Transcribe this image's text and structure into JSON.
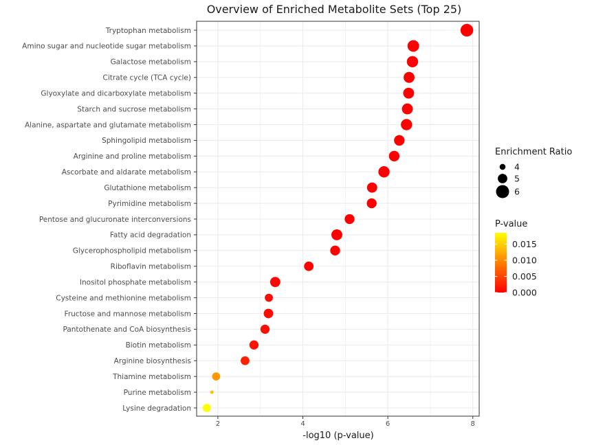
{
  "chart_data": {
    "type": "scatter",
    "title": "Overview of Enriched Metabolite Sets (Top 25)",
    "xlabel": "-log10 (p-value)",
    "ylabel": "",
    "xlim": [
      1.5,
      8.15
    ],
    "xticks": [
      2,
      4,
      6,
      8
    ],
    "xtick_labels": [
      "2",
      "4",
      "6",
      "8"
    ],
    "grid": true,
    "categories": [
      "Tryptophan metabolism",
      "Amino sugar and nucleotide sugar metabolism",
      "Galactose metabolism",
      "Citrate cycle (TCA cycle)",
      "Glyoxylate and dicarboxylate metabolism",
      "Starch and sucrose metabolism",
      "Alanine, aspartate and glutamate metabolism",
      "Sphingolipid metabolism",
      "Arginine and proline metabolism",
      "Ascorbate and aldarate metabolism",
      "Glutathione metabolism",
      "Pyrimidine metabolism",
      "Pentose and glucuronate interconversions",
      "Fatty acid degradation",
      "Glycerophospholipid metabolism",
      "Riboflavin metabolism",
      "Inositol phosphate metabolism",
      "Cysteine and methionine metabolism",
      "Fructose and mannose metabolism",
      "Pantothenate and CoA biosynthesis",
      "Biotin metabolism",
      "Arginine biosynthesis",
      "Thiamine metabolism",
      "Purine metabolism",
      "Lysine degradation"
    ],
    "neg_log10_p": [
      7.86,
      6.6,
      6.58,
      6.5,
      6.49,
      6.46,
      6.44,
      6.27,
      6.15,
      5.91,
      5.63,
      5.62,
      5.1,
      4.8,
      4.76,
      4.14,
      3.35,
      3.2,
      3.19,
      3.11,
      2.85,
      2.64,
      1.96,
      1.86,
      1.74
    ],
    "p_values": [
      1e-08,
      3e-07,
      3e-07,
      3e-07,
      3e-07,
      3e-07,
      4e-07,
      5e-07,
      7e-07,
      1.2e-06,
      2.3e-06,
      2.4e-06,
      7.9e-06,
      1.58e-05,
      1.74e-05,
      7.24e-05,
      0.00045,
      0.00063,
      0.00065,
      0.00078,
      0.0014,
      0.0023,
      0.011,
      0.0138,
      0.0182
    ],
    "enrichment_ratio": [
      5.9,
      5.6,
      5.5,
      5.4,
      5.4,
      5.4,
      5.5,
      5.3,
      5.3,
      5.5,
      5.2,
      5.1,
      5.1,
      5.4,
      5.1,
      5.0,
      5.2,
      4.6,
      5.0,
      4.9,
      4.9,
      4.8,
      4.6,
      3.3,
      4.6
    ],
    "size_legend": {
      "title": "Enrichment Ratio",
      "entries": [
        {
          "label": "4",
          "value": 4
        },
        {
          "label": "5",
          "value": 5
        },
        {
          "label": "6",
          "value": 6
        }
      ]
    },
    "color_legend": {
      "title": "P-value",
      "range": [
        0,
        0.0185
      ],
      "ticks": [
        {
          "label": "0.015",
          "value": 0.015
        },
        {
          "label": "0.010",
          "value": 0.01
        },
        {
          "label": "0.005",
          "value": 0.005
        },
        {
          "label": "0.000",
          "value": 0.0
        }
      ],
      "low_color": "#ff0000",
      "high_color": "#ffff00"
    },
    "panel_color": "#ffffff",
    "grid_color": "#ebebeb",
    "border_color": "#333333"
  }
}
